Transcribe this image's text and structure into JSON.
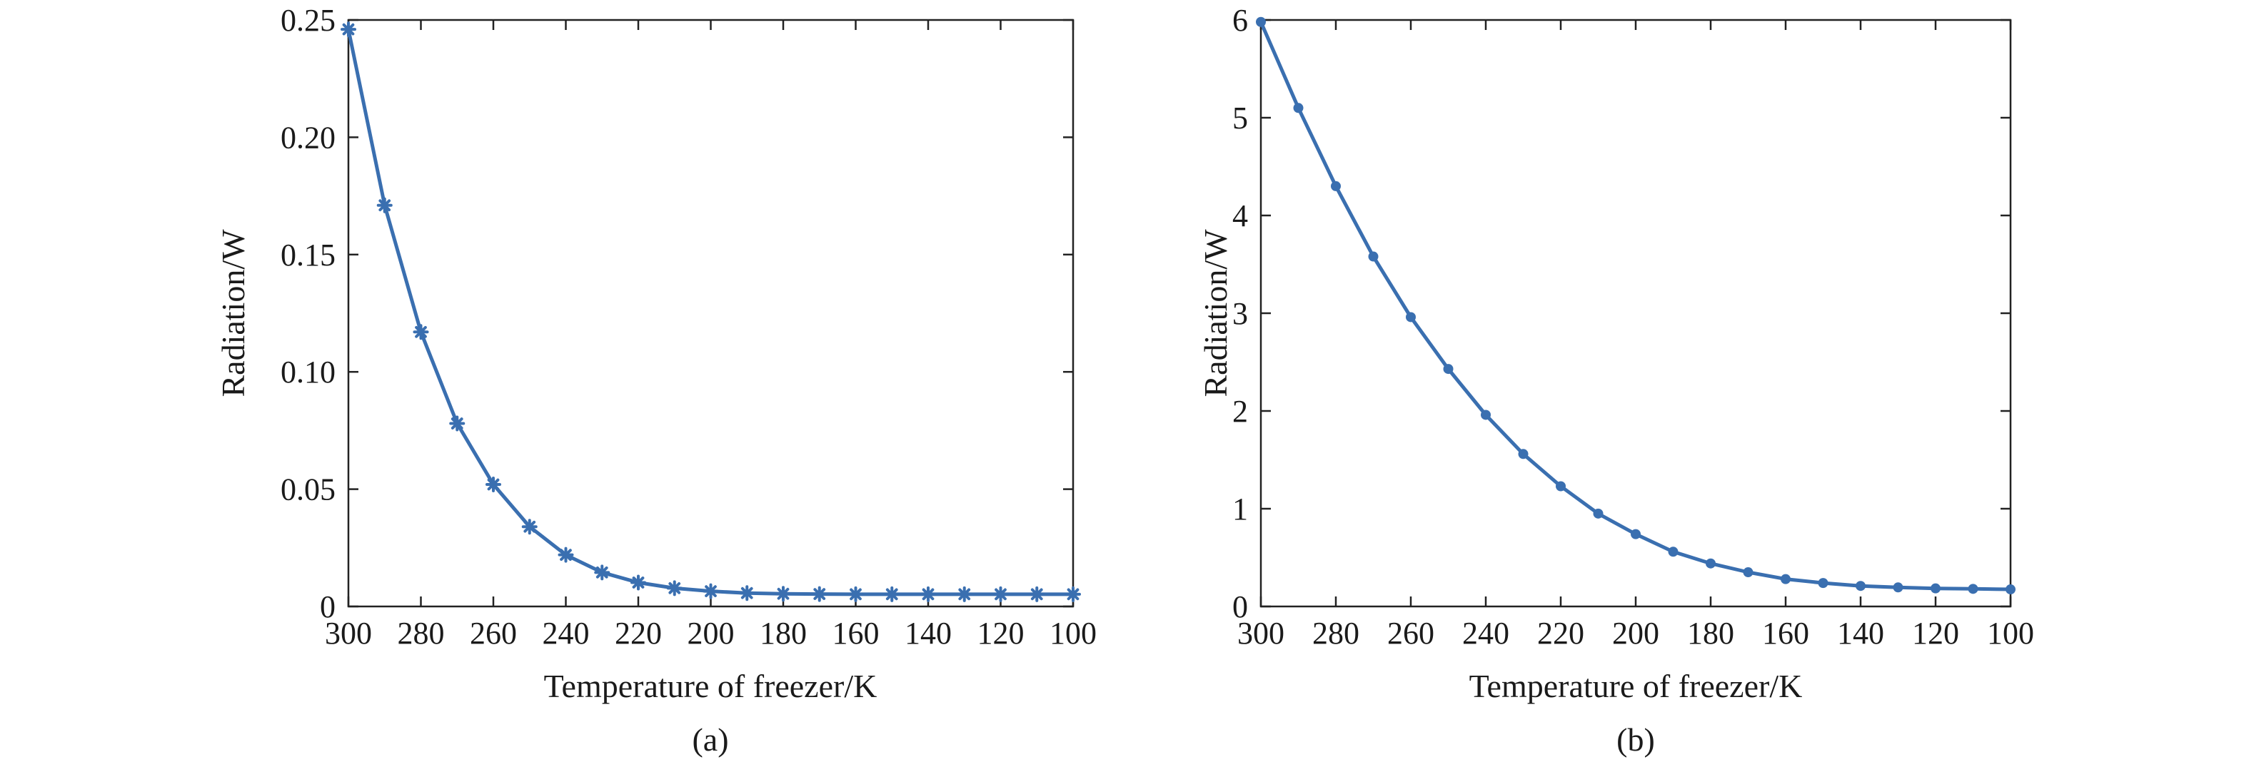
{
  "chart_data": [
    {
      "id": "a",
      "type": "line",
      "caption": "(a)",
      "xlabel": "Temperature of freezer/K",
      "ylabel": "Radiation/W",
      "xlim": [
        300,
        100
      ],
      "ylim": [
        0,
        0.25
      ],
      "xticks": [
        "300",
        "280",
        "260",
        "240",
        "220",
        "200",
        "180",
        "160",
        "140",
        "120",
        "100"
      ],
      "yticks": [
        "0",
        "0.05",
        "0.10",
        "0.15",
        "0.20",
        "0.25"
      ],
      "marker": "star",
      "color": "#3a6fb0",
      "series": [
        {
          "name": "Radiation",
          "x": [
            300,
            290,
            280,
            270,
            260,
            250,
            240,
            230,
            220,
            210,
            200,
            190,
            180,
            170,
            160,
            150,
            140,
            130,
            120,
            110,
            100
          ],
          "y": [
            0.246,
            0.171,
            0.117,
            0.078,
            0.052,
            0.034,
            0.022,
            0.0145,
            0.0102,
            0.0078,
            0.0065,
            0.0057,
            0.0054,
            0.0053,
            0.0052,
            0.0052,
            0.0052,
            0.0052,
            0.0052,
            0.0052,
            0.0052
          ]
        }
      ]
    },
    {
      "id": "b",
      "type": "line",
      "caption": "(b)",
      "xlabel": "Temperature of freezer/K",
      "ylabel": "Radiation/W",
      "xlim": [
        300,
        100
      ],
      "ylim": [
        0,
        6
      ],
      "xticks": [
        "300",
        "280",
        "260",
        "240",
        "220",
        "200",
        "180",
        "160",
        "140",
        "120",
        "100"
      ],
      "yticks": [
        "0",
        "1",
        "2",
        "3",
        "4",
        "5",
        "6"
      ],
      "marker": "dot",
      "color": "#3a6fb0",
      "series": [
        {
          "name": "Radiation",
          "x": [
            300,
            290,
            280,
            270,
            260,
            250,
            240,
            230,
            220,
            210,
            200,
            190,
            180,
            170,
            160,
            150,
            140,
            130,
            120,
            110,
            100
          ],
          "y": [
            5.98,
            5.1,
            4.3,
            3.58,
            2.96,
            2.43,
            1.96,
            1.56,
            1.23,
            0.95,
            0.74,
            0.56,
            0.44,
            0.35,
            0.28,
            0.24,
            0.21,
            0.195,
            0.185,
            0.18,
            0.175
          ]
        }
      ]
    }
  ]
}
